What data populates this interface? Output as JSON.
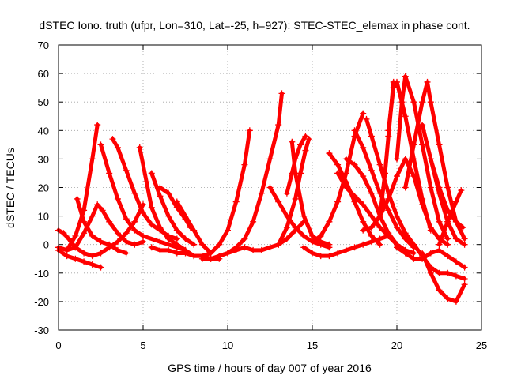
{
  "chart_data": {
    "type": "line",
    "title": "dSTEC Iono. truth (ufpr, Lon=310, Lat=-25, h=927): STEC-STEC_elemax in phase cont.",
    "xlabel": "GPS time / hours of day 007 of year 2016",
    "ylabel": "dSTEC  / TECUs",
    "xlim": [
      0,
      25
    ],
    "ylim": [
      -30,
      70
    ],
    "xticks": [
      0,
      5,
      10,
      15,
      20,
      25
    ],
    "yticks": [
      -30,
      -20,
      -10,
      0,
      10,
      20,
      30,
      40,
      50,
      60,
      70
    ],
    "grid": true,
    "marker": "plus",
    "color": "#ff0000",
    "series": [
      {
        "x": [
          0.0,
          0.3,
          0.6,
          1.0,
          1.5,
          2.0,
          2.5,
          3.0,
          3.5,
          4.0,
          4.5,
          5.0
        ],
        "y": [
          5,
          4,
          2,
          -1,
          -3,
          -4,
          -3,
          -1,
          1,
          4,
          8,
          14
        ]
      },
      {
        "x": [
          0.0,
          0.5,
          1.0,
          1.5,
          2.0,
          2.3,
          2.6,
          3.0,
          3.5,
          4.0,
          4.5,
          5.0
        ],
        "y": [
          -1,
          -2,
          -1,
          4,
          10,
          14,
          12,
          8,
          4,
          1,
          0,
          1
        ]
      },
      {
        "x": [
          0.0,
          0.5,
          1.0,
          1.5,
          2.0,
          2.5
        ],
        "y": [
          -2,
          -4,
          -5,
          -6,
          -7,
          -8
        ]
      },
      {
        "x": [
          1.1,
          1.5,
          2.0,
          2.5,
          3.0,
          3.5,
          4.0
        ],
        "y": [
          16,
          8,
          3,
          1,
          0,
          -2,
          -3
        ]
      },
      {
        "x": [
          0.6,
          1.0,
          1.5,
          2.0,
          2.3
        ],
        "y": [
          -1,
          3,
          12,
          30,
          42
        ]
      },
      {
        "x": [
          2.5,
          3.0,
          3.5,
          4.0,
          4.5,
          5.0,
          6.0,
          7.0,
          7.5
        ],
        "y": [
          35,
          25,
          16,
          9,
          5,
          3,
          1,
          -1,
          -2
        ]
      },
      {
        "x": [
          3.2,
          3.5,
          4.0,
          4.5,
          5.0,
          5.5,
          6.0,
          6.5,
          7.0
        ],
        "y": [
          37,
          34,
          26,
          18,
          11,
          7,
          5,
          3,
          2
        ]
      },
      {
        "x": [
          4.8,
          5.2,
          5.5,
          6.0,
          6.5,
          7.0,
          7.5
        ],
        "y": [
          34,
          22,
          13,
          6,
          2,
          0,
          -2
        ]
      },
      {
        "x": [
          5.5,
          6.0,
          6.5,
          7.0,
          7.5,
          8.0
        ],
        "y": [
          25,
          17,
          10,
          5,
          2,
          0
        ]
      },
      {
        "x": [
          6.0,
          6.5,
          7.0,
          7.5,
          7.8
        ],
        "y": [
          20,
          18,
          13,
          9,
          6
        ]
      },
      {
        "x": [
          7.0,
          7.5,
          8.0,
          8.5,
          9.0
        ],
        "y": [
          15,
          10,
          5,
          0,
          -3
        ]
      },
      {
        "x": [
          5.5,
          6.0,
          6.5,
          7.0,
          7.5,
          8.0,
          8.5,
          9.0,
          9.5
        ],
        "y": [
          -1,
          -2,
          -2,
          -3,
          -3,
          -4,
          -4,
          -5,
          -5
        ]
      },
      {
        "x": [
          7.0,
          8.0,
          8.5,
          9.0,
          9.5,
          10.0,
          10.5,
          11.0,
          11.3
        ],
        "y": [
          0,
          -4,
          -4,
          -3,
          0,
          5,
          15,
          28,
          40
        ]
      },
      {
        "x": [
          8.5,
          9.0,
          9.5,
          10.0,
          10.5,
          11.0,
          11.5,
          12.0,
          12.5,
          13.0,
          13.2
        ],
        "y": [
          -5,
          -5,
          -4,
          -3,
          -1,
          2,
          8,
          18,
          30,
          42,
          53
        ]
      },
      {
        "x": [
          9.5,
          10.0,
          10.5,
          11.0,
          11.5,
          12.0,
          12.5,
          13.0,
          13.5,
          14.0,
          14.5
        ],
        "y": [
          -4,
          -3,
          -2,
          -1,
          -2,
          -2,
          -1,
          0,
          2,
          5,
          8
        ]
      },
      {
        "x": [
          12.5,
          13.0,
          13.5,
          14.0,
          14.5,
          15.0,
          15.5,
          16.0
        ],
        "y": [
          20,
          15,
          10,
          6,
          3,
          1,
          0,
          -1
        ]
      },
      {
        "x": [
          13.5,
          13.8,
          14.0,
          14.3,
          14.6
        ],
        "y": [
          18,
          25,
          30,
          35,
          38
        ]
      },
      {
        "x": [
          13.0,
          13.5,
          14.0,
          14.3,
          14.6,
          14.8
        ],
        "y": [
          0,
          6,
          16,
          25,
          33,
          37
        ]
      },
      {
        "x": [
          13.8,
          14.0,
          14.5,
          15.0,
          15.5,
          16.0
        ],
        "y": [
          36,
          25,
          10,
          3,
          1,
          0
        ]
      },
      {
        "x": [
          14.5,
          15.0,
          15.5,
          16.0,
          16.5,
          17.0,
          17.5,
          18.0,
          18.5,
          19.0,
          19.5
        ],
        "y": [
          -1,
          -3,
          -4,
          -4,
          -3,
          -2,
          -1,
          0,
          1,
          2,
          3
        ]
      },
      {
        "x": [
          15.0,
          15.5,
          16.0,
          16.5,
          17.0,
          17.5,
          18.0
        ],
        "y": [
          1,
          3,
          8,
          15,
          25,
          38,
          46
        ]
      },
      {
        "x": [
          16.0,
          16.5,
          17.0,
          17.5,
          18.0,
          18.5,
          19.0
        ],
        "y": [
          32,
          28,
          22,
          15,
          8,
          3,
          0
        ]
      },
      {
        "x": [
          17.0,
          17.5,
          18.0,
          18.5,
          19.0,
          19.5,
          20.0,
          20.5,
          21.0
        ],
        "y": [
          30,
          28,
          24,
          18,
          10,
          4,
          0,
          -2,
          -3
        ]
      },
      {
        "x": [
          16.5,
          17.0,
          17.5,
          18.0,
          18.5,
          19.0,
          19.5,
          20.0
        ],
        "y": [
          25,
          20,
          17,
          14,
          10,
          6,
          3,
          0
        ]
      },
      {
        "x": [
          17.5,
          18.0,
          18.5,
          19.0,
          19.5,
          20.0,
          20.5,
          21.0
        ],
        "y": [
          40,
          34,
          26,
          18,
          12,
          6,
          2,
          -1
        ]
      },
      {
        "x": [
          18.2,
          18.5,
          19.0,
          19.5,
          20.0,
          20.5,
          21.0
        ],
        "y": [
          44,
          38,
          28,
          18,
          10,
          4,
          0
        ]
      },
      {
        "x": [
          18.0,
          18.5,
          19.0,
          19.5,
          20.0,
          20.5,
          21.0,
          21.5,
          22.0,
          22.5,
          23.0
        ],
        "y": [
          5,
          6,
          10,
          16,
          24,
          30,
          24,
          14,
          6,
          2,
          0
        ]
      },
      {
        "x": [
          19.0,
          19.3,
          19.5,
          19.8
        ],
        "y": [
          10,
          25,
          38,
          57
        ]
      },
      {
        "x": [
          19.5,
          19.8,
          20.0,
          20.5,
          21.0,
          21.5,
          22.0
        ],
        "y": [
          40,
          55,
          57,
          45,
          30,
          16,
          5
        ]
      },
      {
        "x": [
          20.0,
          20.3,
          20.5,
          21.0,
          21.5,
          22.0,
          22.5,
          23.0
        ],
        "y": [
          30,
          50,
          59,
          50,
          35,
          20,
          8,
          2
        ]
      },
      {
        "x": [
          20.5,
          21.0,
          21.5,
          21.8,
          22.0,
          22.5,
          23.0,
          23.5,
          24.0
        ],
        "y": [
          20,
          35,
          50,
          57,
          50,
          35,
          20,
          8,
          2
        ]
      },
      {
        "x": [
          21.5,
          22.0,
          22.5,
          23.0,
          23.5,
          24.0
        ],
        "y": [
          42,
          30,
          18,
          8,
          2,
          0
        ]
      },
      {
        "x": [
          22.0,
          22.5,
          23.0,
          23.5,
          23.9
        ],
        "y": [
          30,
          20,
          12,
          8,
          6
        ]
      },
      {
        "x": [
          22.5,
          23.0,
          23.5,
          23.8
        ],
        "y": [
          0,
          8,
          15,
          19
        ]
      },
      {
        "x": [
          20.0,
          20.5,
          21.0,
          21.5,
          22.0,
          22.5,
          23.0,
          23.5,
          24.0
        ],
        "y": [
          -1,
          -3,
          -5,
          -5,
          -3,
          -2,
          -4,
          -6,
          -8
        ]
      },
      {
        "x": [
          21.0,
          21.5,
          22.0,
          22.5,
          23.0,
          23.5,
          24.0
        ],
        "y": [
          0,
          -4,
          -8,
          -10,
          -10,
          -11,
          -12
        ]
      },
      {
        "x": [
          21.5,
          22.0,
          22.5,
          23.0,
          23.5,
          24.0
        ],
        "y": [
          -3,
          -10,
          -16,
          -19,
          -20,
          -14
        ]
      }
    ]
  }
}
